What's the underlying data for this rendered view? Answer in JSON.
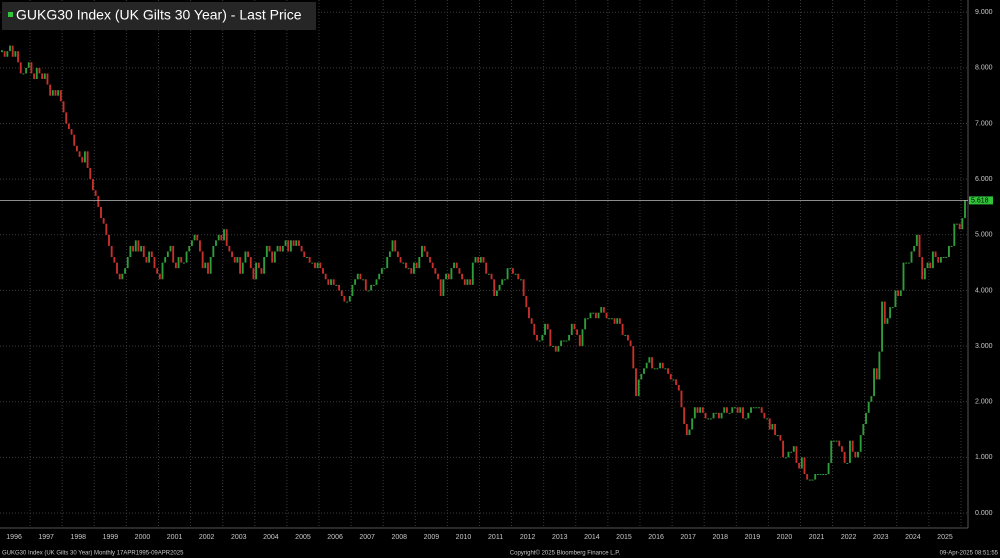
{
  "chart_data": {
    "type": "candlestick",
    "title": "GUKG30 Index (UK Gilts 30 Year) - Last Price",
    "footer_left": "GUKG30 Index (UK Gilts 30 Year)  Monthly 17APR1995-09APR2025",
    "footer_center": "Copyright© 2025 Bloomberg Finance L.P.",
    "footer_right": "09-Apr-2025 08:51:55",
    "last_price": 5.618,
    "up_color": "#2e9e3a",
    "down_color": "#c8302c",
    "ylim": [
      -0.27,
      9.22
    ],
    "yticks": [
      {
        "value": 0,
        "label": "0.000"
      },
      {
        "value": 1,
        "label": "1.000"
      },
      {
        "value": 2,
        "label": "2.000"
      },
      {
        "value": 3,
        "label": "3.000"
      },
      {
        "value": 4,
        "label": "4.000"
      },
      {
        "value": 5,
        "label": "5.000"
      },
      {
        "value": 6,
        "label": "6.000"
      },
      {
        "value": 7,
        "label": "7.000"
      },
      {
        "value": 8,
        "label": "8.000"
      },
      {
        "value": 9,
        "label": "9.000"
      }
    ],
    "xticks": [
      "1996",
      "1997",
      "1998",
      "1999",
      "2000",
      "2001",
      "2002",
      "2003",
      "2004",
      "2005",
      "2006",
      "2007",
      "2008",
      "2009",
      "2010",
      "2011",
      "2012",
      "2013",
      "2014",
      "2015",
      "2016",
      "2017",
      "2018",
      "2019",
      "2020",
      "2021",
      "2022",
      "2023",
      "2024",
      "2025"
    ],
    "grid": true,
    "x": [
      "1995-04",
      "1995-05",
      "1995-06",
      "1995-07",
      "1995-08",
      "1995-09",
      "1995-10",
      "1995-11",
      "1995-12",
      "1996-01",
      "1996-02",
      "1996-03",
      "1996-04",
      "1996-05",
      "1996-06",
      "1996-07",
      "1996-08",
      "1996-09",
      "1996-10",
      "1996-11",
      "1996-12",
      "1997-01",
      "1997-02",
      "1997-03",
      "1997-04",
      "1997-05",
      "1997-06",
      "1997-07",
      "1997-08",
      "1997-09",
      "1997-10",
      "1997-11",
      "1997-12",
      "1998-01",
      "1998-02",
      "1998-03",
      "1998-04",
      "1998-05",
      "1998-06",
      "1998-07",
      "1998-08",
      "1998-09",
      "1998-10",
      "1998-11",
      "1998-12",
      "1999-01",
      "1999-02",
      "1999-03",
      "1999-04",
      "1999-05",
      "1999-06",
      "1999-07",
      "1999-08",
      "1999-09",
      "1999-10",
      "1999-11",
      "1999-12",
      "2000-01",
      "2000-02",
      "2000-03",
      "2000-04",
      "2000-05",
      "2000-06",
      "2000-07",
      "2000-08",
      "2000-09",
      "2000-10",
      "2000-11",
      "2000-12",
      "2001-01",
      "2001-02",
      "2001-03",
      "2001-04",
      "2001-05",
      "2001-06",
      "2001-07",
      "2001-08",
      "2001-09",
      "2001-10",
      "2001-11",
      "2001-12",
      "2002-01",
      "2002-02",
      "2002-03",
      "2002-04",
      "2002-05",
      "2002-06",
      "2002-07",
      "2002-08",
      "2002-09",
      "2002-10",
      "2002-11",
      "2002-12",
      "2003-01",
      "2003-02",
      "2003-03",
      "2003-04",
      "2003-05",
      "2003-06",
      "2003-07",
      "2003-08",
      "2003-09",
      "2003-10",
      "2003-11",
      "2003-12",
      "2004-01",
      "2004-02",
      "2004-03",
      "2004-04",
      "2004-05",
      "2004-06",
      "2004-07",
      "2004-08",
      "2004-09",
      "2004-10",
      "2004-11",
      "2004-12",
      "2005-01",
      "2005-02",
      "2005-03",
      "2005-04",
      "2005-05",
      "2005-06",
      "2005-07",
      "2005-08",
      "2005-09",
      "2005-10",
      "2005-11",
      "2005-12",
      "2006-01",
      "2006-02",
      "2006-03",
      "2006-04",
      "2006-05",
      "2006-06",
      "2006-07",
      "2006-08",
      "2006-09",
      "2006-10",
      "2006-11",
      "2006-12",
      "2007-01",
      "2007-02",
      "2007-03",
      "2007-04",
      "2007-05",
      "2007-06",
      "2007-07",
      "2007-08",
      "2007-09",
      "2007-10",
      "2007-11",
      "2007-12",
      "2008-01",
      "2008-02",
      "2008-03",
      "2008-04",
      "2008-05",
      "2008-06",
      "2008-07",
      "2008-08",
      "2008-09",
      "2008-10",
      "2008-11",
      "2008-12",
      "2009-01",
      "2009-02",
      "2009-03",
      "2009-04",
      "2009-05",
      "2009-06",
      "2009-07",
      "2009-08",
      "2009-09",
      "2009-10",
      "2009-11",
      "2009-12",
      "2010-01",
      "2010-02",
      "2010-03",
      "2010-04",
      "2010-05",
      "2010-06",
      "2010-07",
      "2010-08",
      "2010-09",
      "2010-10",
      "2010-11",
      "2010-12",
      "2011-01",
      "2011-02",
      "2011-03",
      "2011-04",
      "2011-05",
      "2011-06",
      "2011-07",
      "2011-08",
      "2011-09",
      "2011-10",
      "2011-11",
      "2011-12",
      "2012-01",
      "2012-02",
      "2012-03",
      "2012-04",
      "2012-05",
      "2012-06",
      "2012-07",
      "2012-08",
      "2012-09",
      "2012-10",
      "2012-11",
      "2012-12",
      "2013-01",
      "2013-02",
      "2013-03",
      "2013-04",
      "2013-05",
      "2013-06",
      "2013-07",
      "2013-08",
      "2013-09",
      "2013-10",
      "2013-11",
      "2013-12",
      "2014-01",
      "2014-02",
      "2014-03",
      "2014-04",
      "2014-05",
      "2014-06",
      "2014-07",
      "2014-08",
      "2014-09",
      "2014-10",
      "2014-11",
      "2014-12",
      "2015-01",
      "2015-02",
      "2015-03",
      "2015-04",
      "2015-05",
      "2015-06",
      "2015-07",
      "2015-08",
      "2015-09",
      "2015-10",
      "2015-11",
      "2015-12",
      "2016-01",
      "2016-02",
      "2016-03",
      "2016-04",
      "2016-05",
      "2016-06",
      "2016-07",
      "2016-08",
      "2016-09",
      "2016-10",
      "2016-11",
      "2016-12",
      "2017-01",
      "2017-02",
      "2017-03",
      "2017-04",
      "2017-05",
      "2017-06",
      "2017-07",
      "2017-08",
      "2017-09",
      "2017-10",
      "2017-11",
      "2017-12",
      "2018-01",
      "2018-02",
      "2018-03",
      "2018-04",
      "2018-05",
      "2018-06",
      "2018-07",
      "2018-08",
      "2018-09",
      "2018-10",
      "2018-11",
      "2018-12",
      "2019-01",
      "2019-02",
      "2019-03",
      "2019-04",
      "2019-05",
      "2019-06",
      "2019-07",
      "2019-08",
      "2019-09",
      "2019-10",
      "2019-11",
      "2019-12",
      "2020-01",
      "2020-02",
      "2020-03",
      "2020-04",
      "2020-05",
      "2020-06",
      "2020-07",
      "2020-08",
      "2020-09",
      "2020-10",
      "2020-11",
      "2020-12",
      "2021-01",
      "2021-02",
      "2021-03",
      "2021-04",
      "2021-05",
      "2021-06",
      "2021-07",
      "2021-08",
      "2021-09",
      "2021-10",
      "2021-11",
      "2021-12",
      "2022-01",
      "2022-02",
      "2022-03",
      "2022-04",
      "2022-05",
      "2022-06",
      "2022-07",
      "2022-08",
      "2022-09",
      "2022-10",
      "2022-11",
      "2022-12",
      "2023-01",
      "2023-02",
      "2023-03",
      "2023-04",
      "2023-05",
      "2023-06",
      "2023-07",
      "2023-08",
      "2023-09",
      "2023-10",
      "2023-11",
      "2023-12",
      "2024-01",
      "2024-02",
      "2024-03",
      "2024-04",
      "2024-05",
      "2024-06",
      "2024-07",
      "2024-08",
      "2024-09",
      "2024-10",
      "2024-11",
      "2024-12",
      "2025-01",
      "2025-02",
      "2025-03",
      "2025-04"
    ],
    "series": [
      {
        "name": "Last Price",
        "values": [
          8.3,
          8.2,
          8.3,
          8.4,
          8.2,
          8.3,
          8.1,
          7.9,
          7.9,
          8.0,
          8.1,
          7.9,
          7.8,
          8.0,
          7.9,
          7.8,
          7.9,
          7.7,
          7.5,
          7.6,
          7.5,
          7.6,
          7.4,
          7.2,
          7.0,
          6.9,
          6.8,
          6.6,
          6.5,
          6.4,
          6.3,
          6.5,
          6.2,
          6.0,
          5.8,
          5.7,
          5.5,
          5.3,
          5.2,
          5.0,
          4.8,
          4.6,
          4.5,
          4.3,
          4.2,
          4.3,
          4.4,
          4.6,
          4.8,
          4.7,
          4.9,
          4.7,
          4.8,
          4.6,
          4.5,
          4.7,
          4.6,
          4.4,
          4.3,
          4.2,
          4.5,
          4.6,
          4.7,
          4.8,
          4.5,
          4.4,
          4.6,
          4.5,
          4.5,
          4.7,
          4.8,
          4.9,
          5.0,
          4.9,
          4.7,
          4.4,
          4.5,
          4.3,
          4.6,
          4.8,
          4.9,
          5.0,
          4.9,
          5.1,
          4.8,
          4.7,
          4.6,
          4.5,
          4.6,
          4.3,
          4.5,
          4.7,
          4.6,
          4.4,
          4.2,
          4.5,
          4.4,
          4.3,
          4.6,
          4.8,
          4.7,
          4.5,
          4.7,
          4.8,
          4.7,
          4.8,
          4.9,
          4.7,
          4.9,
          4.8,
          4.9,
          4.8,
          4.7,
          4.6,
          4.6,
          4.5,
          4.5,
          4.4,
          4.5,
          4.4,
          4.3,
          4.2,
          4.1,
          4.2,
          4.1,
          4.1,
          4.0,
          3.9,
          3.8,
          3.8,
          3.9,
          4.1,
          4.2,
          4.3,
          4.2,
          4.2,
          4.0,
          4.0,
          4.1,
          4.1,
          4.2,
          4.3,
          4.4,
          4.4,
          4.6,
          4.7,
          4.9,
          4.7,
          4.6,
          4.5,
          4.5,
          4.4,
          4.4,
          4.3,
          4.5,
          4.4,
          4.6,
          4.8,
          4.7,
          4.6,
          4.5,
          4.4,
          4.3,
          4.2,
          3.9,
          4.2,
          4.3,
          4.2,
          4.4,
          4.5,
          4.4,
          4.3,
          4.2,
          4.1,
          4.2,
          4.1,
          4.5,
          4.6,
          4.5,
          4.6,
          4.5,
          4.3,
          4.3,
          4.2,
          3.9,
          4.0,
          4.1,
          4.2,
          4.2,
          4.4,
          4.4,
          4.3,
          4.3,
          4.2,
          4.2,
          3.9,
          3.7,
          3.5,
          3.4,
          3.2,
          3.1,
          3.1,
          3.2,
          3.4,
          3.3,
          3.0,
          3.0,
          2.9,
          3.0,
          3.1,
          3.1,
          3.1,
          3.2,
          3.4,
          3.3,
          3.2,
          3.0,
          3.3,
          3.5,
          3.5,
          3.6,
          3.6,
          3.5,
          3.6,
          3.7,
          3.6,
          3.5,
          3.5,
          3.5,
          3.4,
          3.5,
          3.4,
          3.2,
          3.2,
          3.1,
          3.0,
          2.6,
          2.1,
          2.4,
          2.5,
          2.6,
          2.7,
          2.8,
          2.6,
          2.6,
          2.6,
          2.7,
          2.6,
          2.6,
          2.5,
          2.4,
          2.4,
          2.3,
          2.2,
          1.9,
          1.6,
          1.4,
          1.5,
          1.7,
          1.9,
          1.8,
          1.9,
          1.8,
          1.7,
          1.7,
          1.7,
          1.8,
          1.8,
          1.7,
          1.8,
          1.9,
          1.8,
          1.8,
          1.9,
          1.9,
          1.8,
          1.9,
          1.7,
          1.7,
          1.8,
          1.9,
          1.9,
          1.9,
          1.9,
          1.8,
          1.7,
          1.7,
          1.5,
          1.6,
          1.4,
          1.4,
          1.3,
          1.0,
          1.0,
          1.1,
          1.1,
          1.2,
          0.9,
          0.8,
          1.0,
          0.7,
          0.6,
          0.6,
          0.6,
          0.7,
          0.7,
          0.7,
          0.7,
          0.7,
          0.9,
          1.3,
          1.3,
          1.3,
          1.2,
          1.1,
          0.9,
          0.9,
          1.3,
          1.1,
          1.0,
          1.1,
          1.4,
          1.6,
          1.8,
          2.0,
          2.1,
          2.6,
          2.4,
          2.9,
          3.8,
          3.4,
          3.5,
          3.7,
          3.7,
          4.0,
          3.9,
          4.0,
          4.5,
          4.5,
          4.5,
          4.7,
          4.8,
          5.0,
          4.6,
          4.2,
          4.4,
          4.5,
          4.4,
          4.7,
          4.6,
          4.5,
          4.6,
          4.6,
          4.6,
          4.8,
          4.8,
          5.2,
          5.2,
          5.1,
          5.3,
          5.618
        ]
      }
    ]
  }
}
